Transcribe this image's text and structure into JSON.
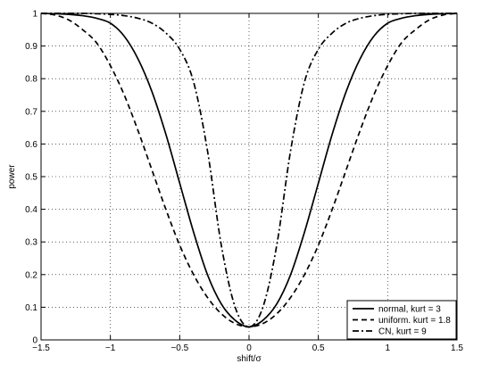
{
  "chart_data": {
    "type": "line",
    "title": "",
    "xlabel": "shift/σ",
    "ylabel": "power",
    "xlim": [
      -1.5,
      1.5
    ],
    "ylim": [
      0,
      1
    ],
    "xticks": [
      -1.5,
      -1,
      -0.5,
      0,
      0.5,
      1,
      1.5
    ],
    "xtick_labels": [
      "−1.5",
      "−1",
      "−0.5",
      "0",
      "0.5",
      "1",
      "1.5"
    ],
    "yticks": [
      0,
      0.1,
      0.2,
      0.3,
      0.4,
      0.5,
      0.6,
      0.7,
      0.8,
      0.9,
      1
    ],
    "ytick_labels": [
      "0",
      "0.1",
      "0.2",
      "0.3",
      "0.4",
      "0.5",
      "0.6",
      "0.7",
      "0.8",
      "0.9",
      "1"
    ],
    "grid": true,
    "legend_position": "bottom-right",
    "x": [
      0,
      0.1,
      0.2,
      0.3,
      0.4,
      0.5,
      0.6,
      0.7,
      0.8,
      0.9,
      1.0,
      1.1,
      1.2,
      1.3,
      1.4,
      1.5
    ],
    "series": [
      {
        "name": "normal, kurt = 3",
        "style": "solid",
        "color": "#000000",
        "values": [
          0.04,
          0.06,
          0.11,
          0.2,
          0.33,
          0.48,
          0.63,
          0.76,
          0.86,
          0.93,
          0.97,
          0.985,
          0.993,
          0.997,
          0.999,
          1.0
        ]
      },
      {
        "name": "uniform. kurt = 1.8",
        "style": "dashed",
        "color": "#000000",
        "values": [
          0.04,
          0.05,
          0.08,
          0.13,
          0.2,
          0.29,
          0.4,
          0.52,
          0.64,
          0.75,
          0.84,
          0.91,
          0.95,
          0.98,
          0.995,
          1.0
        ]
      },
      {
        "name": "CN, kurt = 9",
        "style": "dashdot",
        "color": "#000000",
        "values": [
          0.04,
          0.1,
          0.29,
          0.58,
          0.79,
          0.89,
          0.94,
          0.97,
          0.985,
          0.993,
          0.997,
          0.999,
          1.0,
          1.0,
          1.0,
          1.0
        ]
      }
    ]
  }
}
